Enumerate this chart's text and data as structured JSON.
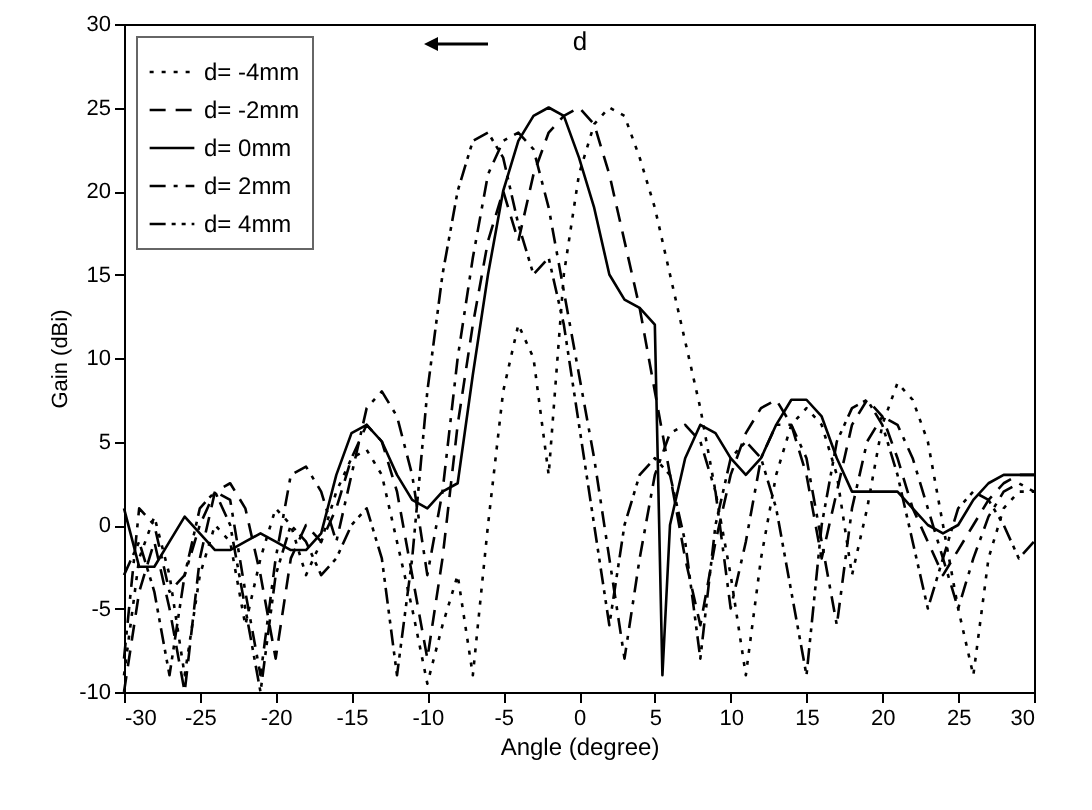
{
  "chart_data": {
    "type": "line",
    "xlabel": "Angle (degree)",
    "ylabel": "Gain (dBi)",
    "xlim": [
      -30,
      30
    ],
    "ylim": [
      -10,
      30
    ],
    "xticks": [
      -30,
      -25,
      -20,
      -15,
      -10,
      -5,
      0,
      5,
      10,
      15,
      20,
      25,
      30
    ],
    "yticks": [
      -10,
      -5,
      0,
      5,
      10,
      15,
      20,
      25,
      30
    ],
    "grid": false,
    "legend": "top left",
    "marker": "none",
    "annotations": [
      "d"
    ],
    "series": [
      {
        "name": "d= -4mm",
        "color": "#000000",
        "line_style": "dotted",
        "x": [
          -30,
          -29,
          -28,
          -27,
          -26,
          -25,
          -24,
          -23,
          -22,
          -21,
          -20,
          -19,
          -18,
          -17,
          -16,
          -15,
          -14,
          -13,
          -12,
          -11,
          -10,
          -9,
          -8,
          -7,
          -6,
          -5,
          -4,
          -3,
          -2,
          -1,
          0,
          1,
          2,
          3,
          4,
          5,
          6,
          7,
          8,
          9,
          10,
          11,
          12,
          13,
          14,
          15,
          16,
          17,
          18,
          19,
          20,
          21,
          22,
          23,
          24,
          25,
          26,
          27,
          28,
          29,
          30
        ],
        "values": [
          -9,
          -2,
          0.5,
          -3,
          -9,
          -3,
          0,
          -1,
          -6,
          -2,
          1,
          0,
          -3,
          -1,
          2,
          4,
          4.5,
          3,
          -1,
          -5,
          -9.5,
          -6,
          -3,
          -9,
          0,
          8,
          12,
          10,
          3,
          15,
          21,
          24,
          25,
          24.5,
          22,
          19,
          15,
          11,
          7,
          2,
          -3,
          -9,
          -2,
          3,
          6,
          7,
          6,
          3,
          -3,
          1,
          6,
          8.5,
          7.5,
          5,
          0,
          -5,
          -9,
          -2,
          1,
          2,
          2
        ]
      },
      {
        "name": "d= -2mm",
        "color": "#000000",
        "line_style": "dashed",
        "x": [
          -30,
          -29,
          -28,
          -27,
          -26,
          -25,
          -24,
          -23,
          -22,
          -21,
          -20,
          -19,
          -18,
          -17,
          -16,
          -15,
          -14,
          -13,
          -12,
          -11,
          -10,
          -9,
          -8,
          -7,
          -6,
          -5,
          -4,
          -3,
          -2,
          -1,
          0,
          1,
          2,
          3,
          4,
          5,
          6,
          7,
          8,
          9,
          10,
          11,
          12,
          13,
          14,
          15,
          16,
          17,
          18,
          19,
          20,
          21,
          22,
          23,
          24,
          25,
          26,
          27,
          28,
          29,
          30
        ],
        "values": [
          -10,
          -4,
          -1,
          -5,
          -10,
          -2,
          2,
          2.5,
          1,
          -3,
          -8,
          -2,
          0,
          -1,
          1,
          4,
          6,
          5,
          2,
          -3,
          -8,
          -2,
          6,
          12,
          17,
          20,
          17,
          21,
          23.5,
          24.5,
          25,
          24,
          21,
          17,
          13,
          8,
          3,
          -2,
          -6,
          -1,
          3,
          5.5,
          7,
          7.5,
          6,
          3,
          -2,
          2,
          6,
          7.5,
          6.5,
          4,
          1,
          -1,
          -3,
          -1.5,
          0,
          1.5,
          2.5,
          3,
          3
        ]
      },
      {
        "name": "d= 0mm",
        "color": "#000000",
        "line_style": "solid",
        "x": [
          -30,
          -29,
          -28,
          -27,
          -26,
          -25,
          -24,
          -23,
          -22,
          -21,
          -20,
          -19,
          -18,
          -17,
          -16,
          -15,
          -14,
          -13,
          -12,
          -11,
          -10,
          -9,
          -8,
          -7,
          -6,
          -5,
          -4,
          -3,
          -2,
          -1,
          0,
          1,
          2,
          3,
          4,
          5,
          5.5,
          6,
          7,
          8,
          9,
          10,
          11,
          12,
          13,
          14,
          15,
          16,
          17,
          18,
          20,
          21,
          22,
          23,
          24,
          25,
          26,
          27,
          28,
          29,
          30
        ],
        "values": [
          1,
          -2.5,
          -2.5,
          -1,
          0.5,
          -0.5,
          -1.5,
          -1.5,
          -1,
          -0.5,
          -1,
          -1.5,
          -1.5,
          -0.5,
          3,
          5.5,
          6,
          5,
          3,
          1.5,
          1,
          2,
          2.5,
          9,
          15,
          20,
          23,
          24.5,
          25,
          24.5,
          22,
          19,
          15,
          13.5,
          13,
          12,
          -9,
          0,
          4,
          6,
          5.5,
          4,
          3,
          4,
          6,
          7.5,
          7.5,
          6.5,
          4,
          2,
          2,
          2,
          1,
          0,
          -0.5,
          0,
          1.5,
          2.5,
          3,
          3,
          3
        ]
      },
      {
        "name": "d= 2mm",
        "color": "#000000",
        "line_style": "dashdot",
        "x": [
          -30,
          -29,
          -28,
          -27,
          -26,
          -25,
          -24,
          -23,
          -22,
          -21,
          -20,
          -19,
          -18,
          -17,
          -16,
          -15,
          -14,
          -13,
          -12,
          -11,
          -10,
          -9,
          -8,
          -7,
          -6,
          -5,
          -4,
          -3,
          -2,
          -1,
          0,
          1,
          2,
          3,
          4,
          5,
          6,
          7,
          8,
          9,
          10,
          11,
          12,
          13,
          14,
          15,
          16,
          17,
          18,
          19,
          20,
          21,
          22,
          23,
          24,
          25,
          26,
          27,
          28,
          29,
          30
        ],
        "values": [
          -8,
          1,
          0,
          -4,
          -3,
          0,
          2,
          1.5,
          -4,
          -9,
          -2,
          3,
          3.5,
          2,
          -1,
          3,
          7,
          8,
          6.5,
          3,
          -3,
          2,
          10,
          16,
          21,
          23,
          23.5,
          22.5,
          19,
          14,
          9,
          4,
          -2,
          -8,
          -2,
          3,
          5.5,
          6,
          5,
          2,
          -5,
          -1,
          4,
          6,
          6,
          4,
          -1,
          -6,
          1,
          5,
          6.5,
          6,
          4,
          1,
          -2,
          -5,
          -2,
          0.5,
          2,
          2.5,
          2
        ]
      },
      {
        "name": "d= 4mm",
        "color": "#000000",
        "line_style": "dashdotdot",
        "x": [
          -30,
          -29,
          -28,
          -27,
          -26,
          -25,
          -24,
          -23,
          -22,
          -21,
          -20,
          -19,
          -18,
          -17,
          -16,
          -15,
          -14,
          -13,
          -12,
          -11,
          -10,
          -9,
          -8,
          -7,
          -6,
          -5,
          -4,
          -3,
          -2,
          -1,
          0,
          1,
          2,
          3,
          4,
          5,
          6,
          7,
          8,
          9,
          10,
          11,
          12,
          13,
          14,
          15,
          16,
          17,
          18,
          19,
          20,
          21,
          22,
          23,
          24,
          25,
          26,
          27,
          28,
          29,
          30
        ],
        "values": [
          -3,
          -1,
          -4,
          -9,
          -3,
          1,
          2,
          0,
          -5,
          -10,
          -3,
          0,
          -1,
          -3,
          -2,
          0,
          1,
          -2,
          -9,
          -2,
          8,
          15,
          20,
          23,
          23.5,
          22,
          18,
          15,
          16,
          12,
          6,
          0,
          -6,
          0,
          3,
          4,
          3,
          -1,
          -8,
          0,
          4,
          5,
          4,
          1,
          -4,
          -9,
          0,
          5,
          7,
          7.5,
          6,
          3,
          -1,
          -5,
          -2,
          1,
          2,
          1.5,
          0,
          -2,
          -1
        ]
      }
    ]
  }
}
